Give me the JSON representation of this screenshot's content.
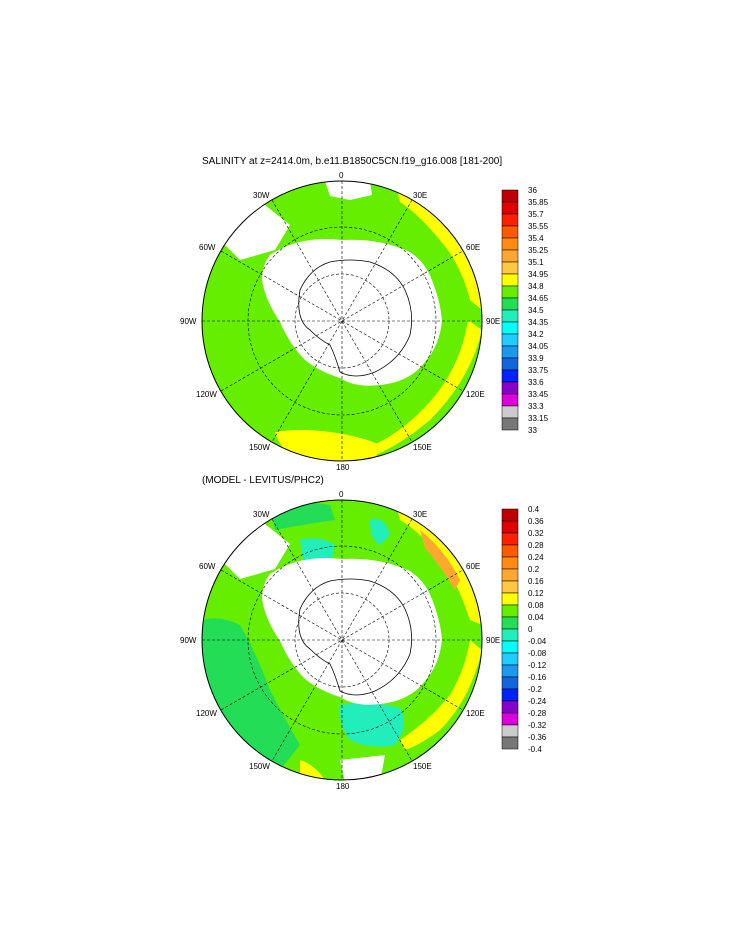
{
  "panels": [
    {
      "title": "SALINITY at z=2414.0m, b.e11.B1850C5CN.f19_g16.008 [181-200]",
      "longitude_labels": [
        "0",
        "30E",
        "60E",
        "90E",
        "120E",
        "150E",
        "180",
        "150W",
        "120W",
        "90W",
        "60W",
        "30W"
      ],
      "colorbar": {
        "labels": [
          "36",
          "35.85",
          "35.7",
          "35.55",
          "35.4",
          "35.25",
          "35.1",
          "34.95",
          "34.8",
          "34.65",
          "34.5",
          "34.35",
          "34.2",
          "34.05",
          "33.9",
          "33.75",
          "33.6",
          "33.45",
          "33.3",
          "33.15",
          "33"
        ],
        "colors": [
          "#c00000",
          "#e00000",
          "#ff2000",
          "#ff5a00",
          "#ff8c10",
          "#ffa830",
          "#ffc840",
          "#ffff00",
          "#66ee00",
          "#22dd55",
          "#22eebb",
          "#00ffff",
          "#22ccff",
          "#1a99ee",
          "#1166dd",
          "#0022ff",
          "#8800cc",
          "#dd00dd",
          "#cccccc",
          "#777777"
        ]
      },
      "colors": {
        "ocean": "#66ee00",
        "high": "#ffff00",
        "orange": "#ffa830",
        "land": "#ffffff"
      }
    },
    {
      "title": "(MODEL - LEVITUS/PHC2)",
      "longitude_labels": [
        "0",
        "30E",
        "60E",
        "90E",
        "120E",
        "150E",
        "180",
        "150W",
        "120W",
        "90W",
        "60W",
        "30W"
      ],
      "colorbar": {
        "labels": [
          "0.4",
          "0.36",
          "0.32",
          "0.28",
          "0.24",
          "0.2",
          "0.16",
          "0.12",
          "0.08",
          "0.04",
          "0",
          "-0.04",
          "-0.08",
          "-0.12",
          "-0.16",
          "-0.2",
          "-0.24",
          "-0.28",
          "-0.32",
          "-0.36",
          "-0.4"
        ],
        "colors": [
          "#c00000",
          "#e00000",
          "#ff2000",
          "#ff5a00",
          "#ff8c10",
          "#ffa830",
          "#ffc840",
          "#ffff00",
          "#66ee00",
          "#22dd55",
          "#22eebb",
          "#00ffff",
          "#22ccff",
          "#1a99ee",
          "#1166dd",
          "#0022ff",
          "#8800cc",
          "#dd00dd",
          "#cccccc",
          "#777777"
        ]
      },
      "colors": {
        "ocean": "#66ee00",
        "high": "#ffff00",
        "orange": "#ffa830",
        "low": "#22eebb",
        "dark_green": "#22dd55",
        "land": "#ffffff"
      }
    }
  ]
}
